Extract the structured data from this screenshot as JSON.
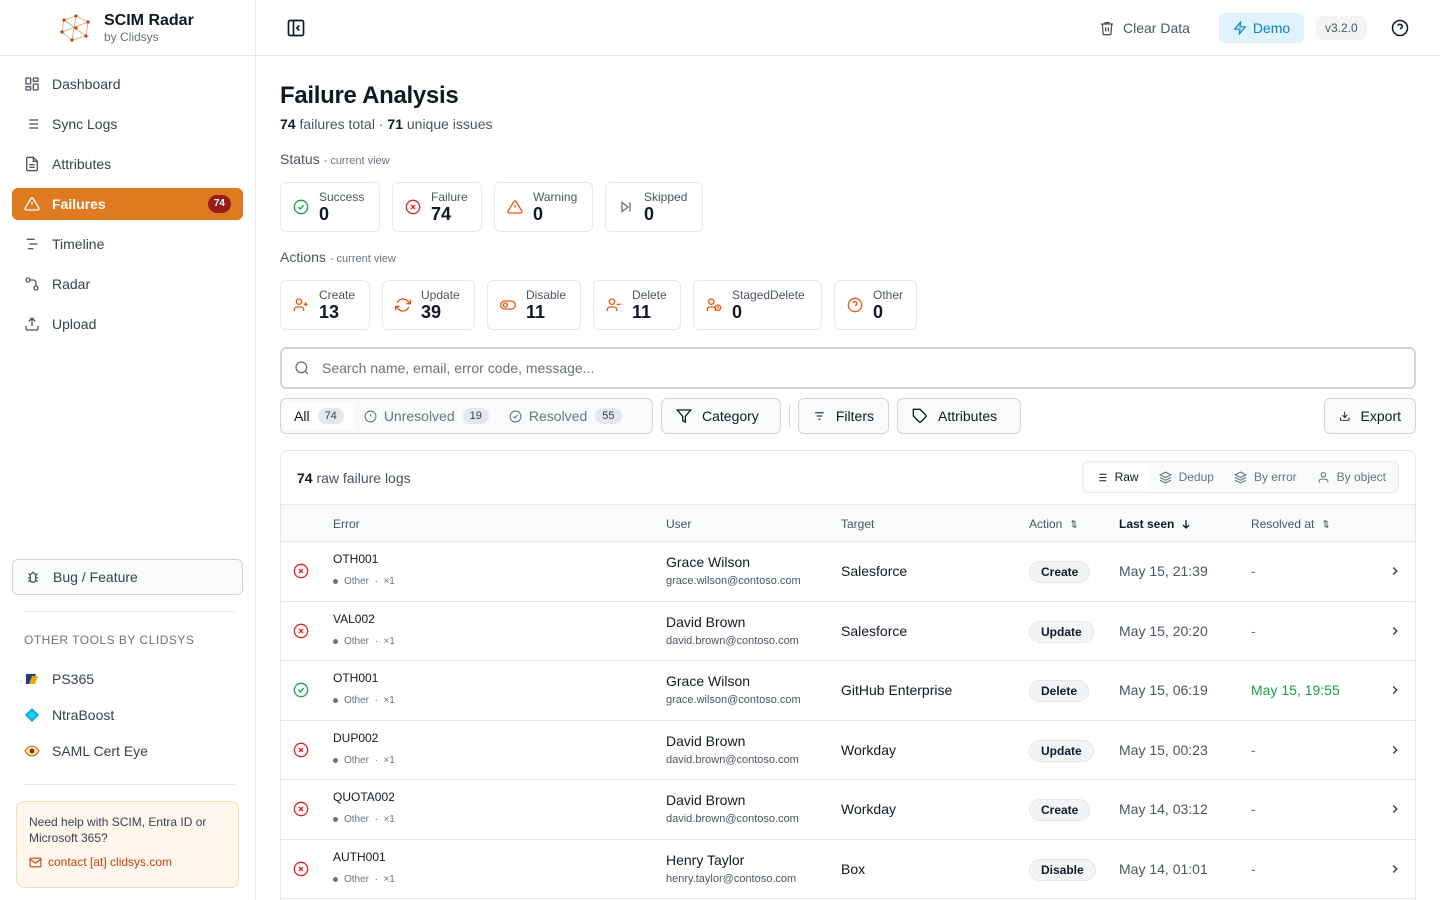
{
  "brand": {
    "title": "SCIM Radar",
    "subtitle": "by Clidsys"
  },
  "nav": [
    {
      "label": "Dashboard",
      "icon": "dashboard-icon"
    },
    {
      "label": "Sync Logs",
      "icon": "list-icon"
    },
    {
      "label": "Attributes",
      "icon": "file-text-icon"
    },
    {
      "label": "Failures",
      "icon": "alert-triangle-icon",
      "badge": "74",
      "active": true
    },
    {
      "label": "Timeline",
      "icon": "timeline-icon"
    },
    {
      "label": "Radar",
      "icon": "radar-icon"
    },
    {
      "label": "Upload",
      "icon": "upload-icon"
    }
  ],
  "bug_button": "Bug / Feature",
  "other_tools": {
    "title": "OTHER TOOLS BY CLIDSYS",
    "items": [
      {
        "label": "PS365"
      },
      {
        "label": "NtraBoost"
      },
      {
        "label": "SAML Cert Eye"
      }
    ]
  },
  "help": {
    "text": "Need help with SCIM, Entra ID or Microsoft 365?",
    "link": "contact [at] clidsys.com"
  },
  "topbar": {
    "clear_data": "Clear Data",
    "demo": "Demo",
    "version": "v3.2.0"
  },
  "page": {
    "title": "Failure Analysis",
    "failures_total": "74",
    "failures_total_label": "failures total ·",
    "unique_issues": "71",
    "unique_issues_label": "unique issues"
  },
  "status": {
    "label": "Status",
    "note": "- current view",
    "cards": [
      {
        "label": "Success",
        "value": "0",
        "color": "#16a34a"
      },
      {
        "label": "Failure",
        "value": "74",
        "color": "#dc2626"
      },
      {
        "label": "Warning",
        "value": "0",
        "color": "#ea580c"
      },
      {
        "label": "Skipped",
        "value": "0",
        "color": "#6b7280"
      }
    ]
  },
  "actions": {
    "label": "Actions",
    "note": "- current view",
    "cards": [
      {
        "label": "Create",
        "value": "13"
      },
      {
        "label": "Update",
        "value": "39"
      },
      {
        "label": "Disable",
        "value": "11"
      },
      {
        "label": "Delete",
        "value": "11"
      },
      {
        "label": "StagedDelete",
        "value": "0"
      },
      {
        "label": "Other",
        "value": "0"
      }
    ]
  },
  "search": {
    "placeholder": "Search name, email, error code, message..."
  },
  "filters": {
    "tabs": [
      {
        "label": "All",
        "count": "74"
      },
      {
        "label": "Unresolved",
        "count": "19"
      },
      {
        "label": "Resolved",
        "count": "55"
      }
    ],
    "category": "Category",
    "filters": "Filters",
    "attributes": "Attributes",
    "export": "Export"
  },
  "table": {
    "count": "74",
    "count_label": "raw failure logs",
    "views": [
      "Raw",
      "Dedup",
      "By error",
      "By object"
    ],
    "columns": {
      "error": "Error",
      "user": "User",
      "target": "Target",
      "action": "Action",
      "last_seen": "Last seen",
      "resolved_at": "Resolved at"
    },
    "rows": [
      {
        "status": "failure",
        "code": "OTH001",
        "category": "Other",
        "count": "×1",
        "name": "Grace Wilson",
        "email": "grace.wilson@contoso.com",
        "target": "Salesforce",
        "action": "Create",
        "last_seen": "May 15, 21:39",
        "resolved_at": "-"
      },
      {
        "status": "failure",
        "code": "VAL002",
        "category": "Other",
        "count": "×1",
        "name": "David Brown",
        "email": "david.brown@contoso.com",
        "target": "Salesforce",
        "action": "Update",
        "last_seen": "May 15, 20:20",
        "resolved_at": "-"
      },
      {
        "status": "resolved",
        "code": "OTH001",
        "category": "Other",
        "count": "×1",
        "name": "Grace Wilson",
        "email": "grace.wilson@contoso.com",
        "target": "GitHub Enterprise",
        "action": "Delete",
        "last_seen": "May 15, 06:19",
        "resolved_at": "May 15, 19:55"
      },
      {
        "status": "failure",
        "code": "DUP002",
        "category": "Other",
        "count": "×1",
        "name": "David Brown",
        "email": "david.brown@contoso.com",
        "target": "Workday",
        "action": "Update",
        "last_seen": "May 15, 00:23",
        "resolved_at": "-"
      },
      {
        "status": "failure",
        "code": "QUOTA002",
        "category": "Other",
        "count": "×1",
        "name": "David Brown",
        "email": "david.brown@contoso.com",
        "target": "Workday",
        "action": "Create",
        "last_seen": "May 14, 03:12",
        "resolved_at": "-"
      },
      {
        "status": "failure",
        "code": "AUTH001",
        "category": "Other",
        "count": "×1",
        "name": "Henry Taylor",
        "email": "henry.taylor@contoso.com",
        "target": "Box",
        "action": "Disable",
        "last_seen": "May 14, 01:01",
        "resolved_at": "-"
      }
    ]
  }
}
